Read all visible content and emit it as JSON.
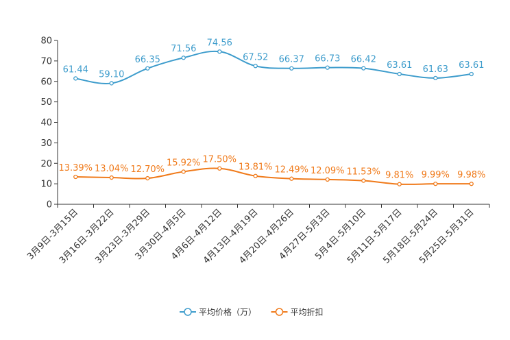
{
  "chart_data": {
    "type": "line",
    "categories": [
      "3月9日-3月15日",
      "3月16日-3月22日",
      "3月23日-3月29日",
      "3月30日-4月5日",
      "4月6日-4月12日",
      "4月13日-4月19日",
      "4月20日-4月26日",
      "4月27日-5月3日",
      "5月4日-5月10日",
      "5月11日-5月17日",
      "5月18日-5月24日",
      "5月25日-5月31日"
    ],
    "ylim": [
      0,
      80
    ],
    "yticks": [
      0,
      10,
      20,
      30,
      40,
      50,
      60,
      70,
      80
    ],
    "series": [
      {
        "name": "平均价格（万）",
        "color": "#3d9ccc",
        "values": [
          61.44,
          59.1,
          66.35,
          71.56,
          74.56,
          67.52,
          66.37,
          66.73,
          66.42,
          63.61,
          61.63,
          63.61
        ],
        "labels": [
          "61.44",
          "59.10",
          "66.35",
          "71.56",
          "74.56",
          "67.52",
          "66.37",
          "66.73",
          "66.42",
          "63.61",
          "61.63",
          "63.61"
        ]
      },
      {
        "name": "平均折扣",
        "color": "#f07a1a",
        "values": [
          13.39,
          13.04,
          12.7,
          15.92,
          17.5,
          13.81,
          12.49,
          12.09,
          11.53,
          9.81,
          9.99,
          9.98
        ],
        "labels": [
          "13.39%",
          "13.04%",
          "12.70%",
          "15.92%",
          "17.50%",
          "13.81%",
          "12.49%",
          "12.09%",
          "11.53%",
          "9.81%",
          "9.99%",
          "9.98%"
        ]
      }
    ]
  }
}
